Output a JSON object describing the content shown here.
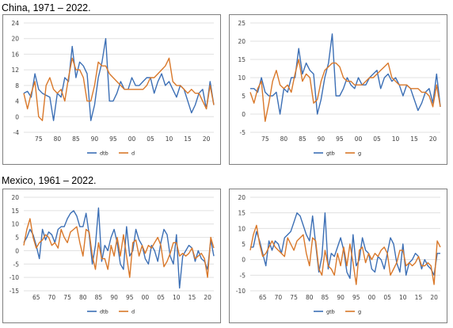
{
  "sections": [
    {
      "title": "China, 1971 – 2022."
    },
    {
      "title": "Mexico, 1961 – 2022."
    }
  ],
  "colors": {
    "series_blue": "#3c6fb5",
    "series_orange": "#d9782a",
    "grid": "#e0e0e0",
    "axis_text": "#404040"
  },
  "chart_data": [
    {
      "type": "line",
      "yticks": [
        -4,
        0,
        4,
        8,
        12,
        16,
        20,
        24
      ],
      "ylim": [
        -4,
        24
      ],
      "xlim": [
        1971,
        2022
      ],
      "xticks": [
        1975,
        1980,
        1985,
        1990,
        1995,
        2000,
        2005,
        2010,
        2015,
        2020
      ],
      "xtick_labels": [
        "75",
        "80",
        "85",
        "90",
        "95",
        "00",
        "05",
        "10",
        "15",
        "20"
      ],
      "x": [
        1971,
        1972,
        1973,
        1974,
        1975,
        1976,
        1977,
        1978,
        1979,
        1980,
        1981,
        1982,
        1983,
        1984,
        1985,
        1986,
        1987,
        1988,
        1989,
        1990,
        1991,
        1992,
        1993,
        1994,
        1995,
        1996,
        1997,
        1998,
        1999,
        2000,
        2001,
        2002,
        2003,
        2004,
        2005,
        2006,
        2007,
        2008,
        2009,
        2010,
        2011,
        2012,
        2013,
        2014,
        2015,
        2016,
        2017,
        2018,
        2019,
        2020,
        2021,
        2022
      ],
      "series": [
        {
          "name": "dtb",
          "color": "#3c6fb5",
          "values": [
            6,
            6.5,
            5,
            11,
            7,
            6,
            5.5,
            5,
            -1,
            6,
            5,
            10,
            9,
            18,
            10,
            14,
            13,
            11,
            -1,
            3,
            10,
            14,
            20,
            4,
            4,
            6,
            9,
            7,
            7,
            10,
            8,
            8,
            9,
            10,
            10,
            6,
            9,
            11,
            8,
            9,
            7,
            5,
            8,
            7,
            4,
            1,
            3,
            6,
            7,
            2,
            9,
            3
          ]
        },
        {
          "name": "d",
          "color": "#d9782a",
          "values": [
            6,
            2,
            6,
            9,
            0,
            -1,
            8,
            10,
            7,
            6,
            7,
            4,
            10,
            15,
            12,
            12,
            10,
            4,
            4,
            8,
            14,
            13,
            13,
            11,
            10,
            9,
            8,
            7,
            7,
            7,
            7,
            7,
            7,
            8,
            10,
            10,
            11,
            12,
            13,
            15,
            9,
            8,
            8,
            7,
            6,
            7,
            6,
            6,
            4,
            2,
            8,
            3
          ]
        }
      ]
    },
    {
      "type": "line",
      "yticks": [
        -5,
        0,
        5,
        10,
        15,
        20,
        25
      ],
      "ylim": [
        -5,
        25
      ],
      "xlim": [
        1971,
        2022
      ],
      "xticks": [
        1975,
        1980,
        1985,
        1990,
        1995,
        2000,
        2005,
        2010,
        2015,
        2020
      ],
      "xtick_labels": [
        "75",
        "80",
        "85",
        "90",
        "95",
        "00",
        "05",
        "10",
        "15",
        "20"
      ],
      "x": [
        1971,
        1972,
        1973,
        1974,
        1975,
        1976,
        1977,
        1978,
        1979,
        1980,
        1981,
        1982,
        1983,
        1984,
        1985,
        1986,
        1987,
        1988,
        1989,
        1990,
        1991,
        1992,
        1993,
        1994,
        1995,
        1996,
        1997,
        1998,
        1999,
        2000,
        2001,
        2002,
        2003,
        2004,
        2005,
        2006,
        2007,
        2008,
        2009,
        2010,
        2011,
        2012,
        2013,
        2014,
        2015,
        2016,
        2017,
        2018,
        2019,
        2020,
        2021,
        2022
      ],
      "series": [
        {
          "name": "gtb",
          "color": "#3c6fb5",
          "values": [
            7,
            7,
            6,
            10,
            6,
            5,
            5,
            6,
            0,
            7,
            6,
            10,
            10,
            18,
            11,
            14,
            12,
            11,
            0,
            4,
            10,
            14,
            22,
            5,
            5,
            7,
            10,
            8,
            7,
            10,
            8,
            8,
            10,
            11,
            12,
            7,
            10,
            11,
            9,
            10,
            8,
            5,
            8,
            7,
            4,
            1,
            3,
            6,
            7,
            3,
            11,
            2
          ]
        },
        {
          "name": "g",
          "color": "#d9782a",
          "values": [
            6,
            3,
            7,
            9,
            -2,
            3,
            9,
            12,
            8,
            7,
            8,
            6,
            11,
            15,
            9,
            11,
            10,
            3,
            4,
            9,
            12,
            13,
            14,
            14,
            13,
            10,
            9,
            9,
            8,
            8,
            8,
            9,
            10,
            10,
            11,
            12,
            13,
            14,
            10,
            9,
            8,
            8,
            8,
            7,
            7,
            7,
            6,
            6,
            5,
            2,
            8,
            2
          ]
        }
      ]
    },
    {
      "type": "line",
      "yticks": [
        -15,
        -10,
        -5,
        0,
        5,
        10,
        15,
        20
      ],
      "ylim": [
        -15,
        20
      ],
      "xlim": [
        1961,
        2022
      ],
      "xticks": [
        1965,
        1970,
        1975,
        1980,
        1985,
        1990,
        1995,
        2000,
        2005,
        2010,
        2015,
        2020
      ],
      "xtick_labels": [
        "65",
        "70",
        "75",
        "80",
        "85",
        "90",
        "95",
        "00",
        "05",
        "10",
        "15",
        "20"
      ],
      "x": [
        1961,
        1962,
        1963,
        1964,
        1965,
        1966,
        1967,
        1968,
        1969,
        1970,
        1971,
        1972,
        1973,
        1974,
        1975,
        1976,
        1977,
        1978,
        1979,
        1980,
        1981,
        1982,
        1983,
        1984,
        1985,
        1986,
        1987,
        1988,
        1989,
        1990,
        1991,
        1992,
        1993,
        1994,
        1995,
        1996,
        1997,
        1998,
        1999,
        2000,
        2001,
        2002,
        2003,
        2004,
        2005,
        2006,
        2007,
        2008,
        2009,
        2010,
        2011,
        2012,
        2013,
        2014,
        2015,
        2016,
        2017,
        2018,
        2019,
        2020,
        2021,
        2022
      ],
      "series": [
        {
          "name": "dtb",
          "color": "#3c6fb5",
          "values": [
            3,
            5,
            8,
            6,
            2,
            -3,
            8,
            4,
            7,
            6,
            3,
            8,
            9,
            9,
            12,
            14,
            15,
            13,
            9,
            9,
            14,
            6,
            -5,
            2,
            16,
            -4,
            2,
            0,
            5,
            8,
            3,
            -5,
            -7,
            9,
            -2,
            0,
            8,
            4,
            2,
            -3,
            -5,
            2,
            0,
            -4,
            3,
            8,
            6,
            -2,
            -5,
            6,
            -14,
            -2,
            0,
            2,
            1,
            -4,
            0,
            -3,
            -4,
            -7,
            4,
            -2
          ]
        },
        {
          "name": "d",
          "color": "#d9782a",
          "values": [
            2,
            8,
            12,
            5,
            1,
            3,
            4,
            6,
            5,
            2,
            3,
            1,
            8,
            5,
            3,
            7,
            8,
            9,
            3,
            -2,
            8,
            7,
            -2,
            -7,
            3,
            -3,
            -3,
            -7,
            2,
            -2,
            5,
            -2,
            6,
            -2,
            -10,
            3,
            4,
            -2,
            2,
            -1,
            2,
            1,
            3,
            5,
            2,
            -6,
            -4,
            -1,
            3,
            3,
            -2,
            -1,
            -2,
            -1,
            1,
            -3,
            -2,
            -1,
            -3,
            -10,
            5,
            1
          ]
        }
      ]
    },
    {
      "type": "line",
      "yticks": [
        -10,
        -5,
        0,
        5,
        10,
        15,
        20
      ],
      "ylim": [
        -10,
        20
      ],
      "xlim": [
        1961,
        2022
      ],
      "xticks": [
        1965,
        1970,
        1975,
        1980,
        1985,
        1990,
        1995,
        2000,
        2005,
        2010,
        2015,
        2020
      ],
      "xtick_labels": [
        "65",
        "70",
        "75",
        "80",
        "85",
        "90",
        "95",
        "00",
        "05",
        "10",
        "15",
        "20"
      ],
      "x": [
        1961,
        1962,
        1963,
        1964,
        1965,
        1966,
        1967,
        1968,
        1969,
        1970,
        1971,
        1972,
        1973,
        1974,
        1975,
        1976,
        1977,
        1978,
        1979,
        1980,
        1981,
        1982,
        1983,
        1984,
        1985,
        1986,
        1987,
        1988,
        1989,
        1990,
        1991,
        1992,
        1993,
        1994,
        1995,
        1996,
        1997,
        1998,
        1999,
        2000,
        2001,
        2002,
        2003,
        2004,
        2005,
        2006,
        2007,
        2008,
        2009,
        2010,
        2011,
        2012,
        2013,
        2014,
        2015,
        2016,
        2017,
        2018,
        2019,
        2020,
        2021,
        2022
      ],
      "series": [
        {
          "name": "gtb",
          "color": "#3c6fb5",
          "values": [
            4,
            4,
            9,
            6,
            2,
            -2,
            6,
            3,
            6,
            5,
            2,
            7,
            8,
            9,
            12,
            15,
            14,
            11,
            8,
            6,
            14,
            5,
            -4,
            1,
            15,
            -3,
            2,
            1,
            4,
            7,
            3,
            -4,
            -6,
            8,
            -2,
            0,
            7,
            3,
            2,
            -3,
            -4,
            1,
            0,
            -3,
            2,
            7,
            5,
            -1,
            -4,
            5,
            -5,
            -1,
            0,
            2,
            1,
            -3,
            0,
            -2,
            -3,
            -5,
            2,
            2
          ]
        },
        {
          "name": "g",
          "color": "#d9782a",
          "values": [
            3,
            8,
            11,
            5,
            1,
            2,
            4,
            6,
            4,
            3,
            2,
            1,
            7,
            5,
            3,
            6,
            7,
            8,
            2,
            -2,
            7,
            6,
            -3,
            -5,
            3,
            -2,
            -3,
            -5,
            2,
            -2,
            4,
            -2,
            5,
            -1,
            -8,
            3,
            4,
            -1,
            2,
            0,
            2,
            1,
            3,
            4,
            2,
            -5,
            -3,
            -1,
            3,
            3,
            -2,
            -1,
            -2,
            -1,
            1,
            -2,
            -2,
            -1,
            -2,
            -8,
            6,
            4
          ]
        }
      ]
    }
  ]
}
